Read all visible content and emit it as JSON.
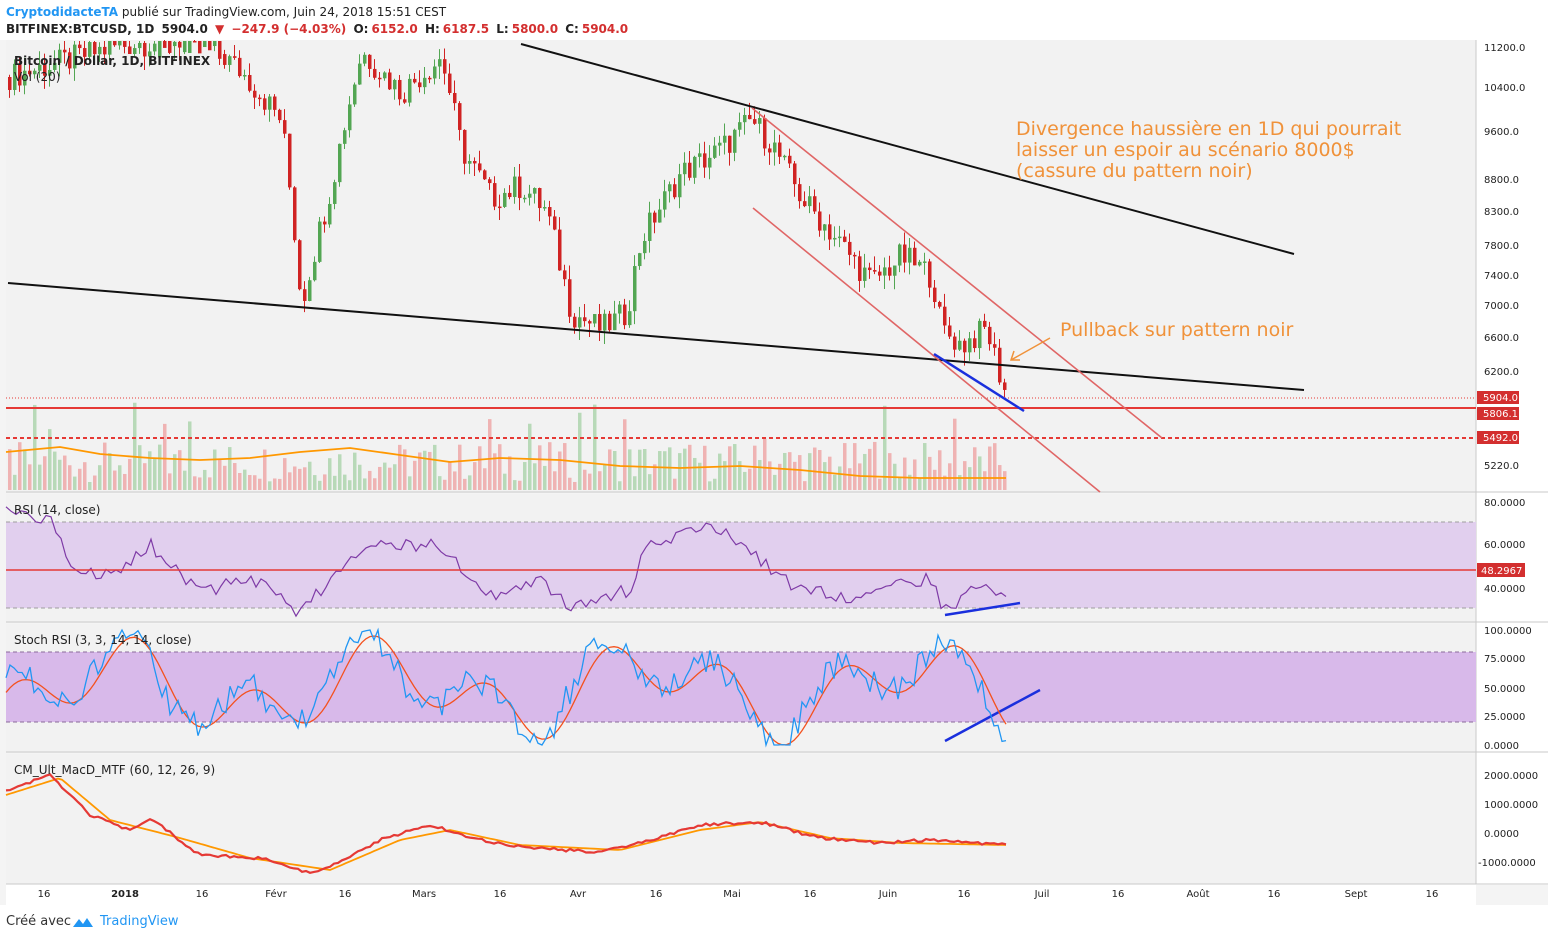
{
  "header": {
    "author": "CryptodidacteTA",
    "published": "publié sur TradingView.com, Juin 24, 2018 15:51 CEST",
    "symbol": "BITFINEX:BTCUSD, 1D",
    "last": "5904.0",
    "change": "−247.9 (−4.03%)",
    "open_label": "O:",
    "open": "6152.0",
    "high_label": "H:",
    "high": "6187.5",
    "low_label": "L:",
    "low": "5800.0",
    "close_label": "C:",
    "close": "5904.0"
  },
  "panels": {
    "main_title": "Bitcoin / Dollar, 1D, BITFINEX",
    "vol_title": "Vol (20)",
    "rsi_title": "RSI (14, close)",
    "stoch_title": "Stoch RSI (3, 3, 14, 14, close)",
    "macd_title": "CM_Ult_MacD_MTF (60, 12, 26, 9)"
  },
  "price_axis": [
    "11200.0",
    "10400.0",
    "9600.0",
    "8800.0",
    "8300.0",
    "7800.0",
    "7400.0",
    "7000.0",
    "6600.0",
    "6200.0",
    "5220.0"
  ],
  "price_tags": [
    {
      "value": "5904.0",
      "color": "#d32f2f"
    },
    {
      "value": "5806.1",
      "color": "#d32f2f"
    },
    {
      "value": "5492.0",
      "color": "#d32f2f"
    }
  ],
  "rsi_axis": [
    "80.0000",
    "60.0000",
    "40.0000"
  ],
  "rsi_tag": "48.2967",
  "stoch_axis": [
    "100.0000",
    "75.0000",
    "50.0000",
    "25.0000",
    "0.0000"
  ],
  "macd_axis": [
    "2000.0000",
    "1000.0000",
    "0.0000",
    "-1000.0000"
  ],
  "time_axis": [
    "16",
    "2018",
    "16",
    "Févr",
    "16",
    "Mars",
    "16",
    "Avr",
    "16",
    "Mai",
    "16",
    "Juin",
    "16",
    "Juil",
    "16",
    "Août",
    "16",
    "Sept",
    "16"
  ],
  "annotations": {
    "divergence": [
      "Divergence haussière en 1D qui pourrait",
      "laisser un espoir au scénario 8000$",
      "(cassure du pattern noir)"
    ],
    "pullback": "Pullback sur pattern noir"
  },
  "colors": {
    "up": "#53a653",
    "down": "#d02323",
    "annotation": "#f0923a",
    "rsi": "#7e3aa6",
    "stoch_k": "#2196f3",
    "stoch_d": "#f4511e",
    "macd": "#5a9a5a",
    "signal": "#ff9800",
    "trend_blue": "#1a2fdd",
    "channel": "#e06666",
    "hline": "#e53935"
  },
  "footer": {
    "created": "Créé avec",
    "brand": "TradingView"
  }
}
